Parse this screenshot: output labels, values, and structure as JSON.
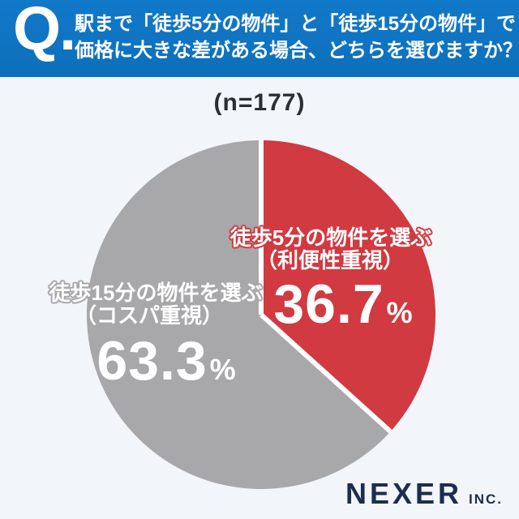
{
  "colors": {
    "header_blue": "#1179c9",
    "header_blue_dark": "#0d6fba",
    "background": "#f2f6fa",
    "red": "#d03a40",
    "gray": "#a8a8aa",
    "navy": "#1d2d4f",
    "white": "#ffffff",
    "text_dark": "#2b2f33"
  },
  "header": {
    "q_mark": "Q.",
    "line1": "駅まで「徒歩5分の物件」と「徒歩15分の物件」で",
    "line2": "価格に大きな差がある場合、どちらを選びますか？"
  },
  "sample_label": "(n=177)",
  "chart_data": {
    "type": "pie",
    "title": "駅まで「徒歩5分の物件」と「徒歩15分の物件」で価格に大きな差がある場合、どちらを選びますか？",
    "n_label": "(n=177)",
    "categories": [
      "徒歩5分の物件を選ぶ（利便性重視）",
      "徒歩15分の物件を選ぶ（コスパ重視）"
    ],
    "values": [
      36.7,
      63.3
    ],
    "unit": "%",
    "colors": [
      "#d03a40",
      "#a8a8aa"
    ],
    "start_angle_deg": 0,
    "direction": "clockwise",
    "divider_color": "#ffffff",
    "legend_position": "on-slice"
  },
  "slice_labels": {
    "red": {
      "line1": "徒歩5分の物件を選ぶ",
      "line2": "（利便性重視）",
      "value": "36.7",
      "unit": "%"
    },
    "gray": {
      "line1": "徒歩15分の物件を選ぶ",
      "line2": "（コスパ重視）",
      "value": "63.3",
      "unit": "%"
    }
  },
  "logo": {
    "name": "NEXER",
    "suffix": "INC."
  }
}
